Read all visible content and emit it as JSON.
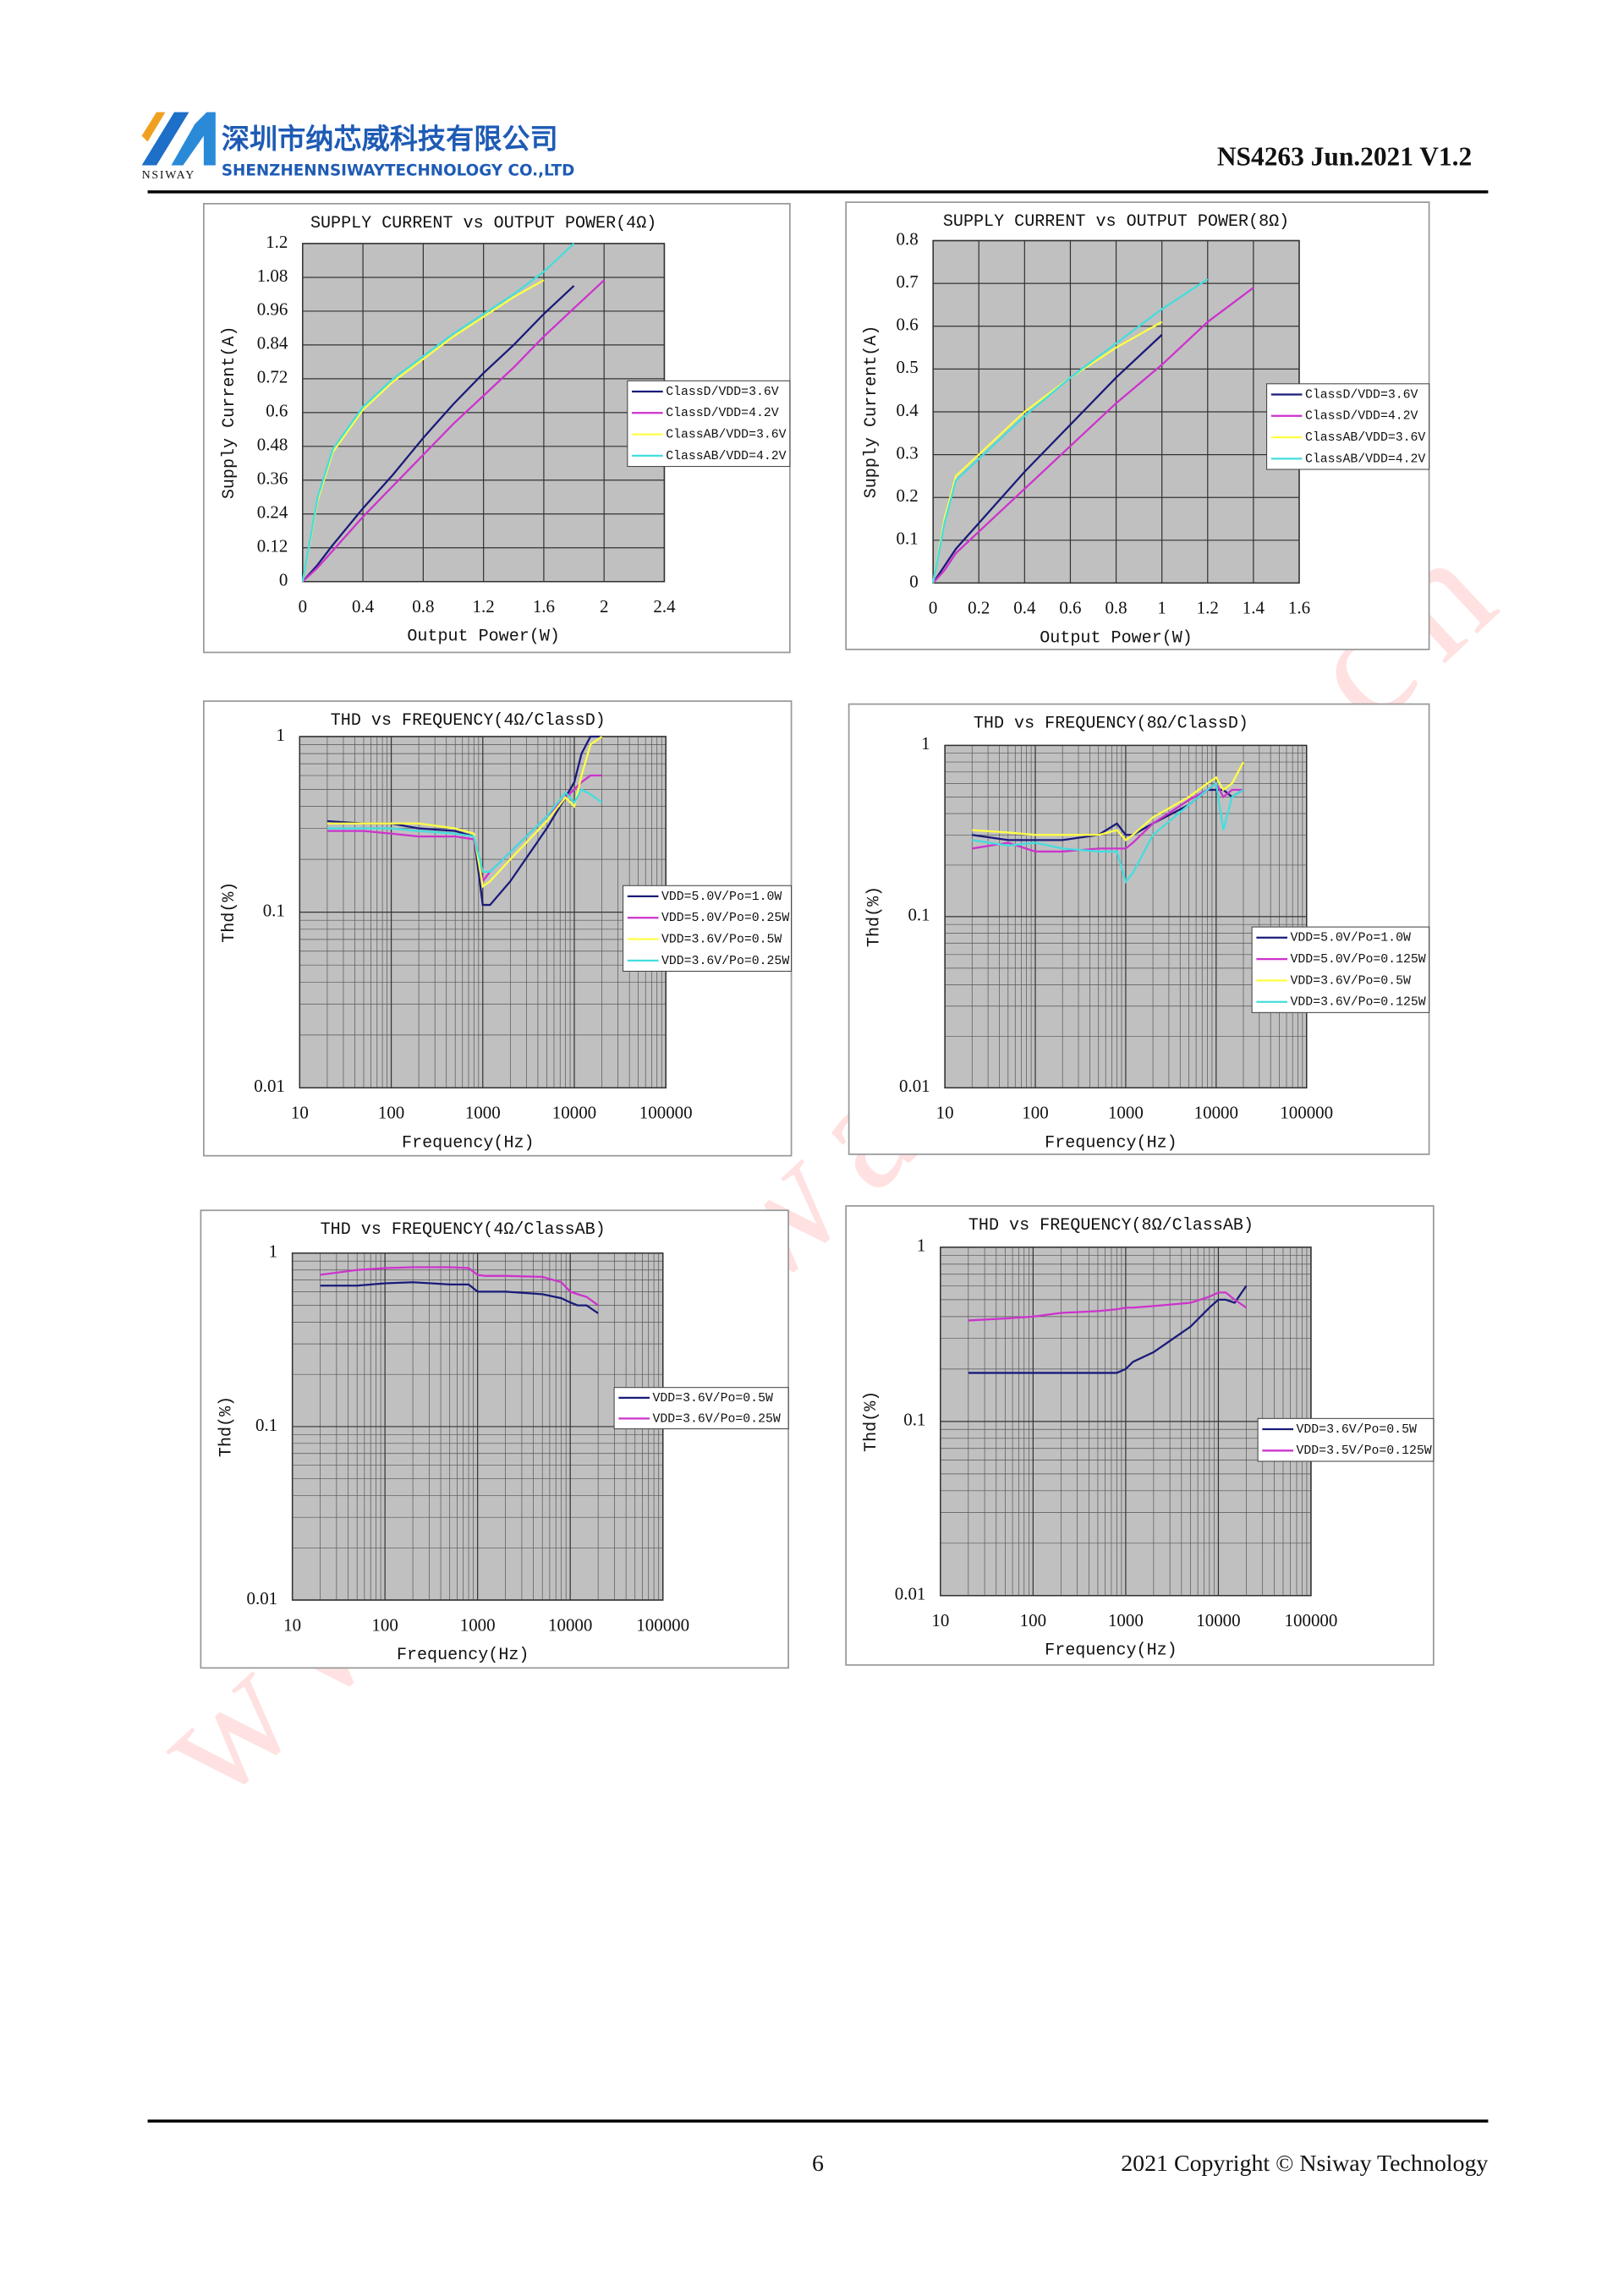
{
  "header": {
    "company_cn": "深圳市纳芯威科技有限公司",
    "company_en": "SHENZHENNSIWAYTECHNOLOGY CO.,LTD",
    "logo_text": "NSIWAY",
    "doc_id": "NS4263 Jun.2021 V1.2"
  },
  "watermark": "www.nsiway.com.cn",
  "footer": {
    "page": "6",
    "copyright": "2021 Copyright © Nsiway Technology"
  },
  "chart_data": [
    {
      "type": "line",
      "title": "SUPPLY CURRENT vs OUTPUT POWER(4Ω)",
      "x_label": "Output Power(W)",
      "y_label": "Supply Current(A)",
      "x": [
        0,
        0.1,
        0.2,
        0.4,
        0.6,
        0.8,
        1.0,
        1.2,
        1.4,
        1.6,
        1.8,
        2.0
      ],
      "series": [
        {
          "name": "ClassD/VDD=3.6V",
          "color": "#1a1a7a",
          "values": [
            0,
            0.06,
            0.13,
            0.26,
            0.38,
            0.51,
            0.63,
            0.74,
            0.84,
            0.95,
            1.05,
            null
          ]
        },
        {
          "name": "ClassD/VDD=4.2V",
          "color": "#cc33cc",
          "values": [
            0,
            0.05,
            0.11,
            0.23,
            0.34,
            0.45,
            0.56,
            0.66,
            0.76,
            0.87,
            0.97,
            1.07
          ]
        },
        {
          "name": "ClassAB/VDD=3.6V",
          "color": "#ffff44",
          "values": [
            0,
            0.29,
            0.46,
            0.61,
            0.71,
            0.79,
            0.87,
            0.94,
            1.01,
            1.07,
            null,
            null
          ]
        },
        {
          "name": "ClassAB/VDD=4.2V",
          "color": "#44dddd",
          "values": [
            0,
            0.3,
            0.47,
            0.62,
            0.72,
            0.8,
            0.88,
            0.95,
            1.02,
            1.1,
            1.2,
            null
          ]
        }
      ],
      "xlim": [
        0,
        2.4
      ],
      "ylim": [
        0,
        1.2
      ],
      "xticks": [
        0,
        0.4,
        0.8,
        1.2,
        1.6,
        2,
        2.4
      ],
      "yticks": [
        0,
        0.12,
        0.24,
        0.36,
        0.48,
        0.6,
        0.72,
        0.84,
        0.96,
        1.08,
        1.2
      ],
      "grid": true,
      "legend": "right"
    },
    {
      "type": "line",
      "title": "SUPPLY CURRENT vs OUTPUT POWER(8Ω)",
      "x_label": "Output Power(W)",
      "y_label": "Supply Current(A)",
      "x": [
        0,
        0.05,
        0.1,
        0.2,
        0.4,
        0.6,
        0.8,
        1.0,
        1.2,
        1.4
      ],
      "series": [
        {
          "name": "ClassD/VDD=3.6V",
          "color": "#1a1a7a",
          "values": [
            0,
            0.04,
            0.08,
            0.14,
            0.26,
            0.37,
            0.48,
            0.58,
            null,
            null
          ]
        },
        {
          "name": "ClassD/VDD=4.2V",
          "color": "#cc33cc",
          "values": [
            0,
            0.03,
            0.07,
            0.12,
            0.22,
            0.32,
            0.42,
            0.51,
            0.61,
            0.69
          ]
        },
        {
          "name": "ClassAB/VDD=3.6V",
          "color": "#ffff44",
          "values": [
            0,
            0.15,
            0.25,
            0.3,
            0.4,
            0.48,
            0.55,
            0.61,
            null,
            null
          ]
        },
        {
          "name": "ClassAB/VDD=4.2V",
          "color": "#44dddd",
          "values": [
            0,
            0.14,
            0.24,
            0.29,
            0.39,
            0.48,
            0.56,
            0.64,
            0.71,
            null
          ]
        }
      ],
      "xlim": [
        0,
        1.6
      ],
      "ylim": [
        0,
        0.8
      ],
      "xticks": [
        0,
        0.2,
        0.4,
        0.6,
        0.8,
        1,
        1.2,
        1.4,
        1.6
      ],
      "yticks": [
        0,
        0.1,
        0.2,
        0.3,
        0.4,
        0.5,
        0.6,
        0.7,
        0.8
      ],
      "grid": true,
      "legend": "right"
    },
    {
      "type": "line",
      "title": "THD vs FREQUENCY(4Ω/ClassD)",
      "x_label": "Frequency(Hz)",
      "y_label": "Thd(%)",
      "x": [
        20,
        50,
        100,
        200,
        500,
        800,
        1000,
        1200,
        2000,
        5000,
        8000,
        10000,
        12000,
        15000,
        20000
      ],
      "series": [
        {
          "name": "VDD=5.0V/Po=1.0W",
          "color": "#1a1a7a",
          "values": [
            0.33,
            0.32,
            0.32,
            0.3,
            0.29,
            0.27,
            0.11,
            0.11,
            0.15,
            0.3,
            0.45,
            0.55,
            0.8,
            1.0,
            1.0
          ]
        },
        {
          "name": "VDD=5.0V/Po=0.25W",
          "color": "#cc33cc",
          "values": [
            0.29,
            0.29,
            0.28,
            0.27,
            0.27,
            0.26,
            0.15,
            0.17,
            0.22,
            0.35,
            0.45,
            0.5,
            0.55,
            0.6,
            0.6
          ]
        },
        {
          "name": "VDD=3.6V/Po=0.5W",
          "color": "#ffff44",
          "values": [
            0.32,
            0.32,
            0.32,
            0.32,
            0.3,
            0.28,
            0.14,
            0.15,
            0.2,
            0.33,
            0.45,
            0.4,
            0.6,
            0.9,
            1.0
          ]
        },
        {
          "name": "VDD=3.6V/Po=0.25W",
          "color": "#44dddd",
          "values": [
            0.3,
            0.3,
            0.3,
            0.29,
            0.28,
            0.27,
            0.17,
            0.17,
            0.22,
            0.35,
            0.48,
            0.42,
            0.5,
            0.47,
            0.42
          ]
        }
      ],
      "xlim": [
        10,
        100000
      ],
      "ylim": [
        0.01,
        1
      ],
      "xticks": [
        10,
        100,
        1000,
        10000,
        100000
      ],
      "yticks": [
        0.01,
        0.1,
        1
      ],
      "xscale": "log",
      "yscale": "log",
      "grid": true,
      "legend": "right"
    },
    {
      "type": "line",
      "title": "THD vs FREQUENCY(8Ω/ClassD)",
      "x_label": "Frequency(Hz)",
      "y_label": "Thd(%)",
      "x": [
        20,
        50,
        100,
        200,
        500,
        800,
        1000,
        1200,
        2000,
        5000,
        8000,
        10000,
        12000,
        15000,
        20000
      ],
      "series": [
        {
          "name": "VDD=5.0V/Po=1.0W",
          "color": "#1a1a7a",
          "values": [
            0.3,
            0.28,
            0.28,
            0.28,
            0.3,
            0.35,
            0.3,
            0.3,
            0.35,
            0.45,
            0.55,
            0.55,
            0.55,
            0.5,
            0.55
          ]
        },
        {
          "name": "VDD=5.0V/Po=0.125W",
          "color": "#cc33cc",
          "values": [
            0.25,
            0.27,
            0.24,
            0.24,
            0.25,
            0.25,
            0.25,
            0.27,
            0.35,
            0.48,
            0.55,
            0.6,
            0.5,
            0.55,
            0.55
          ]
        },
        {
          "name": "VDD=3.6V/Po=0.5W",
          "color": "#ffff44",
          "values": [
            0.32,
            0.31,
            0.3,
            0.3,
            0.3,
            0.32,
            0.28,
            0.3,
            0.38,
            0.5,
            0.6,
            0.65,
            0.55,
            0.6,
            0.8
          ]
        },
        {
          "name": "VDD=3.6V/Po=0.125W",
          "color": "#44dddd",
          "values": [
            0.28,
            0.26,
            0.27,
            0.25,
            0.24,
            0.24,
            0.16,
            0.18,
            0.3,
            0.45,
            0.55,
            0.6,
            0.32,
            0.5,
            0.55
          ]
        }
      ],
      "xlim": [
        10,
        100000
      ],
      "ylim": [
        0.01,
        1
      ],
      "xticks": [
        10,
        100,
        1000,
        10000,
        100000
      ],
      "yticks": [
        0.01,
        0.1,
        1
      ],
      "xscale": "log",
      "yscale": "log",
      "grid": true,
      "legend": "right"
    },
    {
      "type": "line",
      "title": "THD vs FREQUENCY(4Ω/ClassAB)",
      "x_label": "Frequency(Hz)",
      "y_label": "Thd(%)",
      "x": [
        20,
        50,
        100,
        200,
        500,
        800,
        1000,
        1200,
        2000,
        5000,
        8000,
        10000,
        12000,
        15000,
        20000
      ],
      "series": [
        {
          "name": "VDD=3.6V/Po=0.5W",
          "color": "#1a1a7a",
          "values": [
            0.65,
            0.65,
            0.67,
            0.68,
            0.66,
            0.66,
            0.6,
            0.6,
            0.6,
            0.58,
            0.55,
            0.52,
            0.5,
            0.5,
            0.45
          ]
        },
        {
          "name": "VDD=3.6V/Po=0.25W",
          "color": "#cc33cc",
          "values": [
            0.75,
            0.8,
            0.82,
            0.83,
            0.83,
            0.82,
            0.75,
            0.74,
            0.74,
            0.73,
            0.68,
            0.6,
            0.58,
            0.56,
            0.5
          ]
        }
      ],
      "xlim": [
        10,
        100000
      ],
      "ylim": [
        0.01,
        1
      ],
      "xticks": [
        10,
        100,
        1000,
        10000,
        100000
      ],
      "yticks": [
        0.01,
        0.1,
        1
      ],
      "xscale": "log",
      "yscale": "log",
      "grid": true,
      "legend": "right"
    },
    {
      "type": "line",
      "title": "THD vs FREQUENCY(8Ω/ClassAB)",
      "x_label": "Frequency(Hz)",
      "y_label": "Thd(%)",
      "x": [
        20,
        50,
        100,
        200,
        500,
        800,
        1000,
        1200,
        2000,
        5000,
        8000,
        10000,
        12000,
        15000,
        20000
      ],
      "series": [
        {
          "name": "VDD=3.6V/Po=0.5W",
          "color": "#1a1a7a",
          "values": [
            0.19,
            0.19,
            0.19,
            0.19,
            0.19,
            0.19,
            0.2,
            0.22,
            0.25,
            0.35,
            0.45,
            0.5,
            0.5,
            0.48,
            0.6
          ]
        },
        {
          "name": "VDD=3.5V/Po=0.125W",
          "color": "#cc33cc",
          "values": [
            0.38,
            0.39,
            0.4,
            0.42,
            0.43,
            0.44,
            0.45,
            0.45,
            0.46,
            0.48,
            0.52,
            0.55,
            0.55,
            0.5,
            0.45
          ]
        }
      ],
      "xlim": [
        10,
        100000
      ],
      "ylim": [
        0.01,
        1
      ],
      "xticks": [
        10,
        100,
        1000,
        10000,
        100000
      ],
      "yticks": [
        0.01,
        0.1,
        1
      ],
      "xscale": "log",
      "yscale": "log",
      "grid": true,
      "legend": "right"
    }
  ]
}
